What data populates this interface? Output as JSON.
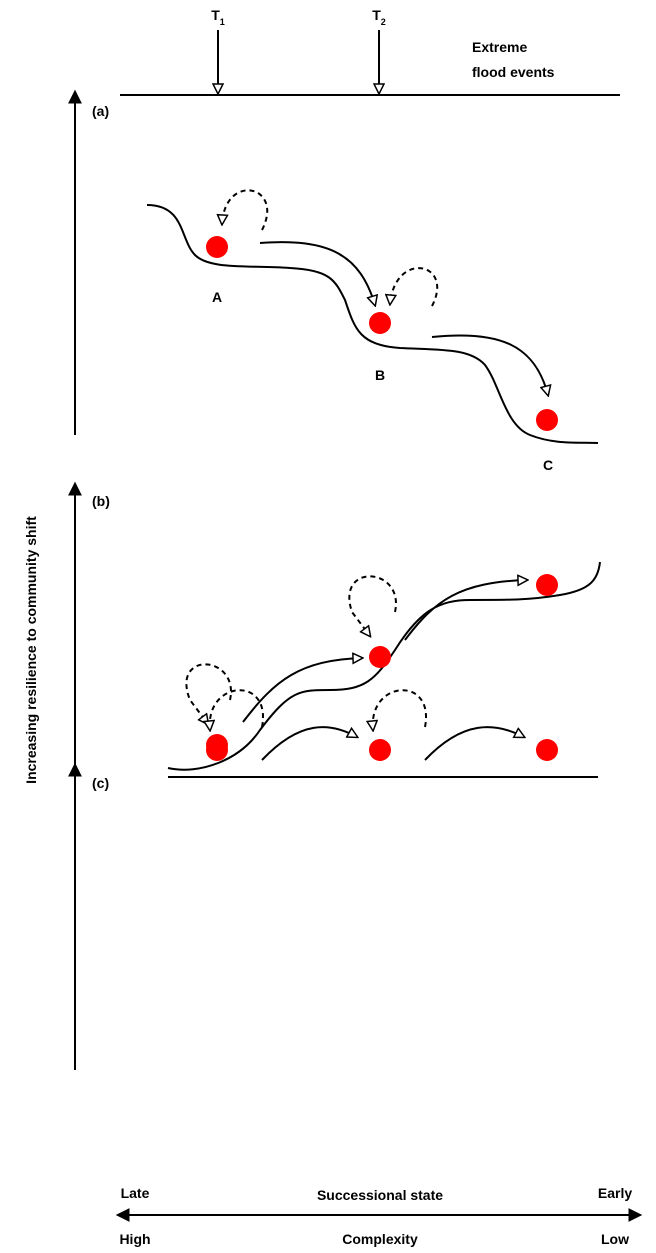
{
  "top": {
    "events": [
      {
        "base": "T",
        "sub": "1"
      },
      {
        "base": "T",
        "sub": "2"
      }
    ],
    "caption": [
      "Extreme",
      "flood events"
    ]
  },
  "y_axis_label": "Increasing resilience to community shift",
  "panels": [
    {
      "label": "(a)",
      "states": [
        "A",
        "B",
        "C"
      ]
    },
    {
      "label": "(b)"
    },
    {
      "label": "(c)"
    }
  ],
  "bottom": {
    "top_row": [
      "Late",
      "Successional state",
      "Early"
    ],
    "bottom_row": [
      "High",
      "Complexity",
      "Low"
    ]
  }
}
